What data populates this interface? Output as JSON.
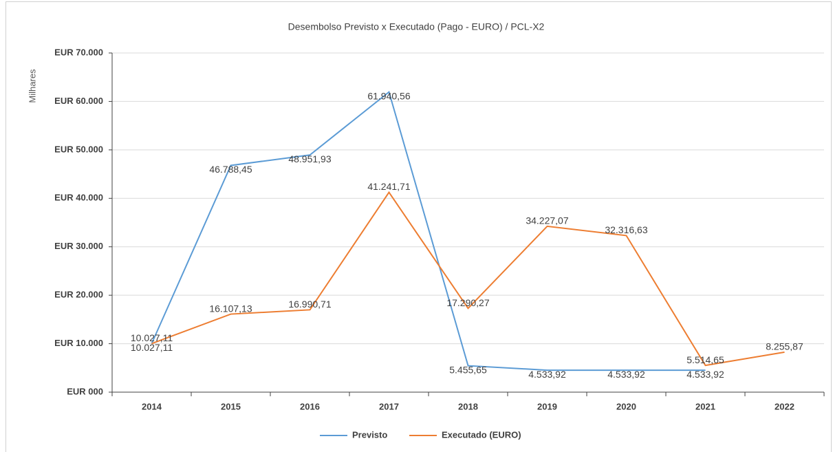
{
  "chart_data": {
    "type": "line",
    "title": "Desembolso Previsto x Executado (Pago - EURO) / PCL-X2",
    "y_label": "Milhares",
    "categories": [
      "2014",
      "2015",
      "2016",
      "2017",
      "2018",
      "2019",
      "2020",
      "2021",
      "2022"
    ],
    "series": [
      {
        "name": "Previsto",
        "color": "#5b9bd5",
        "values": [
          10027.11,
          46788.45,
          48951.93,
          61940.56,
          5455.65,
          4533.92,
          4533.92,
          4533.92,
          null
        ],
        "value_labels": [
          "10.027,11",
          "46.788,45",
          "48.951,93",
          "61.940,56",
          "5.455,65",
          "4.533,92",
          "4.533,92",
          "4.533,92",
          null
        ]
      },
      {
        "name": "Executado (EURO)",
        "color": "#ed7d31",
        "values": [
          10027.11,
          16107.13,
          16990.71,
          41241.71,
          17290.27,
          34227.07,
          32316.63,
          5514.65,
          8255.87
        ],
        "value_labels": [
          "10.027,11",
          "16.107,13",
          "16.990,71",
          "41.241,71",
          "17.290,27",
          "34.227,07",
          "32.316,63",
          "5.514,65",
          "8.255,87"
        ]
      }
    ],
    "ylim": [
      0,
      70000
    ],
    "yticks": [
      {
        "value": 0,
        "label": "EUR 000"
      },
      {
        "value": 10000,
        "label": "EUR 10.000"
      },
      {
        "value": 20000,
        "label": "EUR 20.000"
      },
      {
        "value": 30000,
        "label": "EUR 30.000"
      },
      {
        "value": 40000,
        "label": "EUR 40.000"
      },
      {
        "value": 50000,
        "label": "EUR 50.000"
      },
      {
        "value": 60000,
        "label": "EUR 60.000"
      },
      {
        "value": 70000,
        "label": "EUR 70.000"
      }
    ],
    "grid": true,
    "legend": "bottom"
  }
}
